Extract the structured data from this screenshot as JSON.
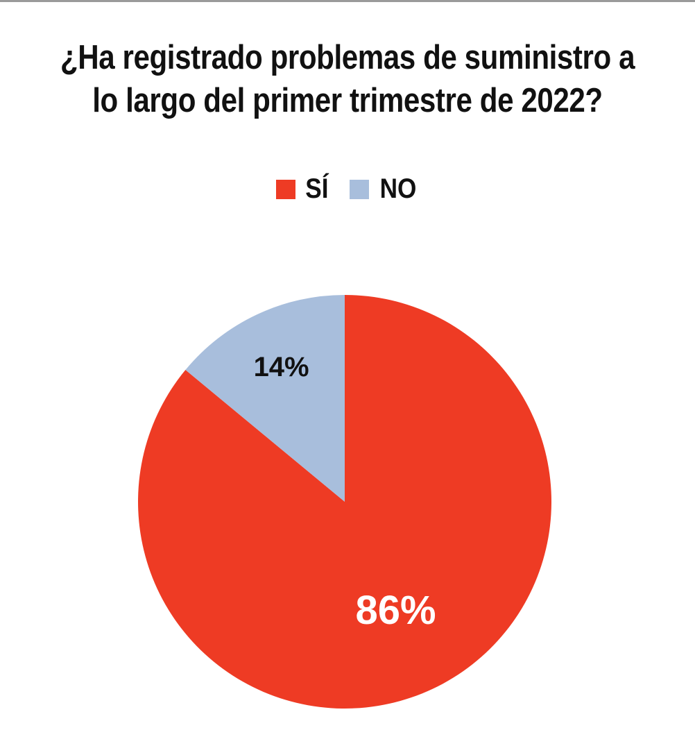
{
  "chart_data": {
    "type": "pie",
    "title": "¿Ha registrado problemas de suministro a lo largo del primer trimestre de 2022?",
    "legend_position": "top",
    "slices": [
      {
        "label": "SÍ",
        "value": 86,
        "display": "86%",
        "color": "#ee3b24",
        "label_color": "#ffffff"
      },
      {
        "label": "NO",
        "value": 14,
        "display": "14%",
        "color": "#a8bedc",
        "label_color": "#111111"
      }
    ]
  }
}
